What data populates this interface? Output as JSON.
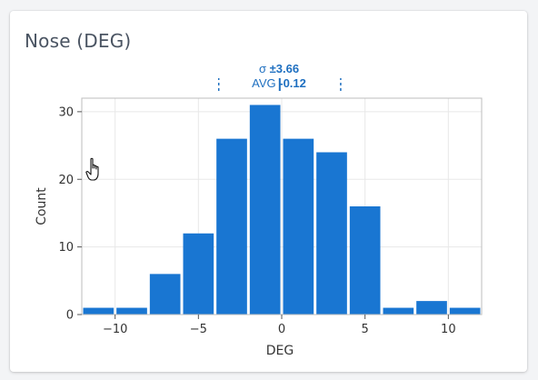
{
  "card": {
    "title": "Nose (DEG)"
  },
  "stats": {
    "sigma_label": "σ",
    "sigma_value": "±3.66",
    "avg_label": "AVG",
    "avg_value": "-0.12"
  },
  "colors": {
    "bar": "#1976d2",
    "accent": "#1e6fc0",
    "axis_text": "#333333",
    "grid": "#e8e8e8",
    "frame": "#bdbdbd"
  },
  "icons": {
    "cursor": "hand-pointer-icon"
  },
  "chart_data": {
    "type": "bar",
    "title": "",
    "xlabel": "DEG",
    "ylabel": "Count",
    "bin_width": 2,
    "bins": [
      {
        "start": -12,
        "end": -10,
        "count": 1
      },
      {
        "start": -10,
        "end": -8,
        "count": 1
      },
      {
        "start": -8,
        "end": -6,
        "count": 6
      },
      {
        "start": -6,
        "end": -4,
        "count": 12
      },
      {
        "start": -4,
        "end": -2,
        "count": 26
      },
      {
        "start": -2,
        "end": 0,
        "count": 31
      },
      {
        "start": 0,
        "end": 2,
        "count": 26
      },
      {
        "start": 2,
        "end": 4,
        "count": 24
      },
      {
        "start": 4,
        "end": 6,
        "count": 16
      },
      {
        "start": 6,
        "end": 8,
        "count": 1
      },
      {
        "start": 8,
        "end": 10,
        "count": 2
      },
      {
        "start": 10,
        "end": 12,
        "count": 1
      }
    ],
    "xlim": [
      -12,
      12
    ],
    "ylim": [
      0,
      32
    ],
    "x_ticks": [
      -10,
      -5,
      0,
      5,
      10
    ],
    "x_tick_labels": [
      "−10",
      "−5",
      "0",
      "5",
      "10"
    ],
    "y_ticks": [
      0,
      10,
      20,
      30
    ],
    "y_tick_labels": [
      "0",
      "10",
      "20",
      "30"
    ],
    "mean": -0.12,
    "sigma": 3.66,
    "grid": true,
    "legend": "none"
  }
}
